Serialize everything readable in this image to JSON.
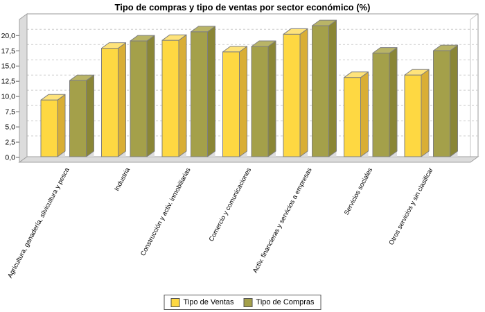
{
  "chart_data": {
    "type": "bar",
    "style": "3d-column-grouped",
    "title": "Tipo de compras y tipo de ventas por sector económico (%)",
    "xlabel": "",
    "ylabel": "",
    "categories": [
      "Agricultura, ganadería, silvicultura y pesca",
      "Industria",
      "Construcción y activ. inmobiliarias",
      "Comercio y comunicaciones",
      "Activ. financieras y servicios a empresas",
      "Servicios sociales",
      "Otros servicios y sin clasificar"
    ],
    "series": [
      {
        "name": "Tipo de Ventas",
        "color": "#FED842",
        "color_top": "#FEE37B",
        "color_side": "#D9AE35",
        "values": [
          9.3,
          17.8,
          19.1,
          17.2,
          20.1,
          13.0,
          13.4
        ]
      },
      {
        "name": "Tipo de Compras",
        "color": "#A4A04A",
        "color_top": "#B9B466",
        "color_side": "#8A8636",
        "values": [
          12.5,
          19.0,
          20.5,
          18.1,
          21.5,
          17.0,
          17.4
        ]
      }
    ],
    "ylim": [
      0,
      22.5
    ],
    "ytick_step": 2.5,
    "ytick_labels": [
      "0,0",
      "2,5",
      "5,0",
      "7,5",
      "10,0",
      "12,5",
      "15,0",
      "17,5",
      "20,0"
    ],
    "grid": "horizontal-dashed",
    "legend_position": "bottom-center",
    "category_label_rotation_deg": -62,
    "outline_color": "#7F7F7F",
    "wall_color": "#DCDCDC",
    "wall_edge_color": "#A0A0A0",
    "gridline_color": "#CCCCCC",
    "text_color": "#000000"
  }
}
